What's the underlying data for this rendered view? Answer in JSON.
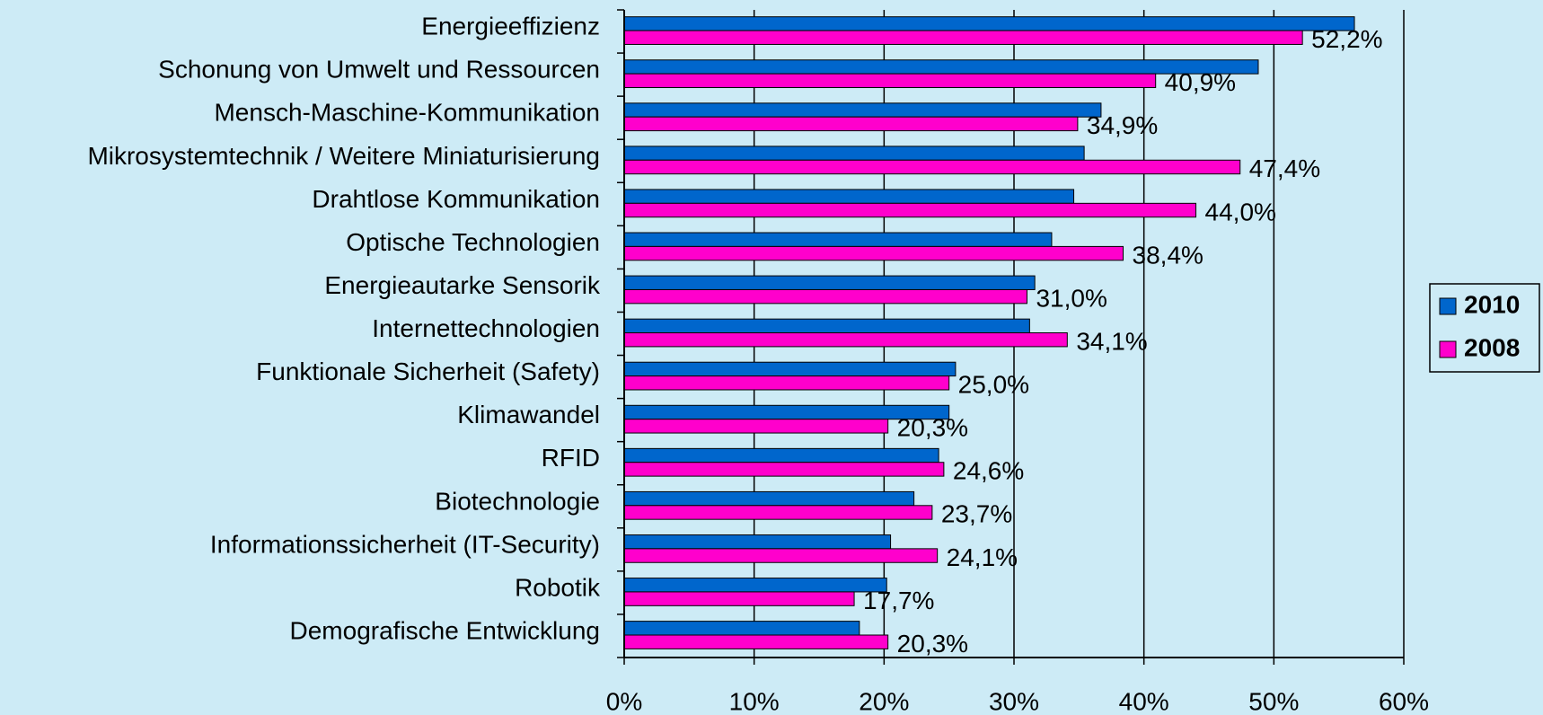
{
  "chart_data": {
    "type": "hbar",
    "categories": [
      "Energieeffizienz",
      "Schonung von Umwelt und Ressourcen",
      "Mensch-Maschine-Kommunikation",
      "Mikrosystemtechnik / Weitere Miniaturisierung",
      "Drahtlose Kommunikation",
      "Optische Technologien",
      "Energieautarke Sensorik",
      "Internettechnologien",
      "Funktionale Sicherheit (Safety)",
      "Klimawandel",
      "RFID",
      "Biotechnologie",
      "Informationssicherheit (IT-Security)",
      "Robotik",
      "Demografische Entwicklung"
    ],
    "series": [
      {
        "name": "2010",
        "color": "#0066cc",
        "values": [
          56.2,
          48.8,
          36.7,
          35.4,
          34.6,
          32.9,
          31.6,
          31.2,
          25.5,
          25.0,
          24.2,
          22.3,
          20.5,
          20.2,
          18.1
        ]
      },
      {
        "name": "2008",
        "color": "#ff00cc",
        "values": [
          52.2,
          40.9,
          34.9,
          47.4,
          44.0,
          38.4,
          31.0,
          34.1,
          25.0,
          20.3,
          24.6,
          23.7,
          24.1,
          17.7,
          20.3
        ],
        "value_labels": [
          "52,2%",
          "40,9%",
          "34,9%",
          "47,4%",
          "44,0%",
          "38,4%",
          "31,0%",
          "34,1%",
          "25,0%",
          "20,3%",
          "24,6%",
          "23,7%",
          "24,1%",
          "17,7%",
          "20,3%"
        ]
      }
    ],
    "xlim": [
      0,
      60
    ],
    "xticks": [
      {
        "value": 0,
        "label": "0%"
      },
      {
        "value": 10,
        "label": "10%"
      },
      {
        "value": 20,
        "label": "20%"
      },
      {
        "value": 30,
        "label": "30%"
      },
      {
        "value": 40,
        "label": "40%"
      },
      {
        "value": 50,
        "label": "50%"
      },
      {
        "value": 60,
        "label": "60%"
      }
    ],
    "grid": true,
    "legend": "right"
  }
}
